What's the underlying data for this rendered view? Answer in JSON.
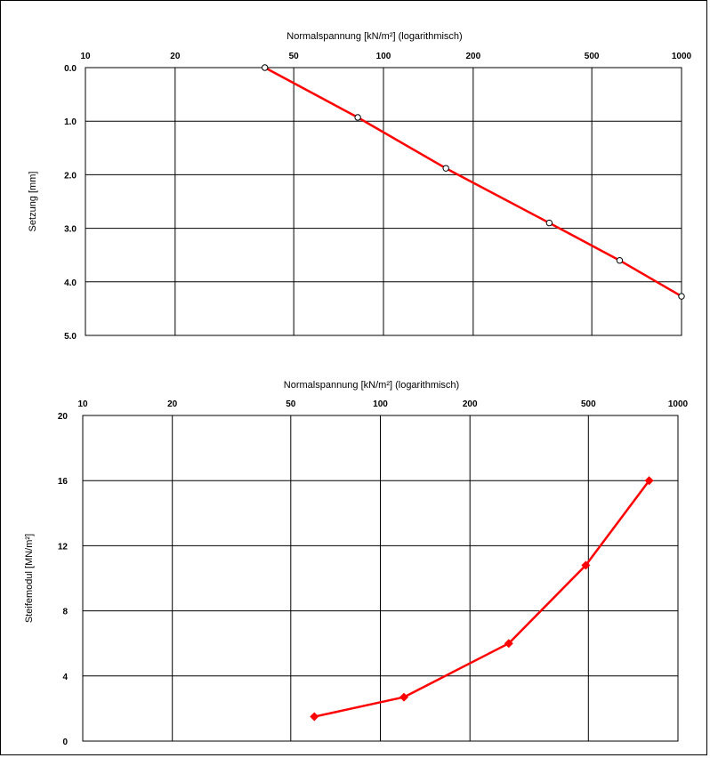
{
  "colors": {
    "series": "#ff0000",
    "grid": "#000000",
    "background": "#ffffff",
    "marker_edge": "#000000"
  },
  "chart_data": [
    {
      "type": "line",
      "title": "",
      "xlabel": "Normalspannung [kN/m²] (logarithmisch)",
      "ylabel": "Setzung [mm]",
      "x_scale": "log",
      "x_axis_position": "top",
      "x_ticks": [
        10,
        20,
        50,
        100,
        200,
        500,
        1000
      ],
      "x_tick_labels": [
        "10",
        "20",
        "50",
        "100",
        "200",
        "500",
        "1000"
      ],
      "xlim": [
        10,
        1000
      ],
      "y_ticks": [
        0,
        1,
        2,
        3,
        4,
        5
      ],
      "y_tick_labels": [
        "0.0",
        "1.0",
        "2.0",
        "3.0",
        "4.0",
        "5.0"
      ],
      "ylim": [
        0,
        5
      ],
      "y_inverted": true,
      "grid": true,
      "series": [
        {
          "x": [
            40,
            82,
            162,
            360,
            620,
            1000
          ],
          "y": [
            0.0,
            0.93,
            1.88,
            2.9,
            3.6,
            4.27
          ],
          "marker": "circle"
        }
      ]
    },
    {
      "type": "line",
      "title": "",
      "xlabel": "Normalspannung [kN/m²] (logarithmisch)",
      "ylabel": "Steifemodul [MN/m²]",
      "x_scale": "log",
      "x_axis_position": "top",
      "x_ticks": [
        10,
        20,
        50,
        100,
        200,
        500,
        1000
      ],
      "x_tick_labels": [
        "10",
        "20",
        "50",
        "100",
        "200",
        "500",
        "1000"
      ],
      "xlim": [
        10,
        1000
      ],
      "y_ticks": [
        0,
        4,
        8,
        12,
        16,
        20
      ],
      "y_tick_labels": [
        "0",
        "4",
        "8",
        "12",
        "16",
        "20"
      ],
      "ylim": [
        0,
        20
      ],
      "y_inverted": false,
      "grid": true,
      "series": [
        {
          "x": [
            60,
            120,
            270,
            490,
            800
          ],
          "y": [
            1.5,
            2.7,
            6.0,
            10.8,
            16.0
          ],
          "marker": "diamond"
        }
      ]
    }
  ]
}
